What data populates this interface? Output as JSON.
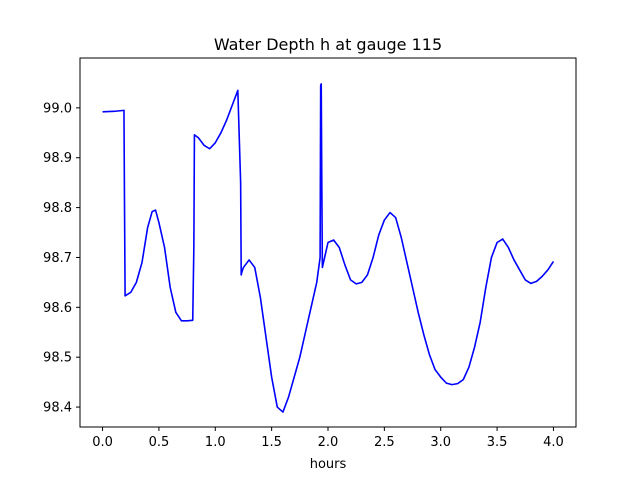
{
  "chart_data": {
    "type": "line",
    "title": "Water Depth h at gauge 115",
    "xlabel": "hours",
    "ylabel": "",
    "xlim": [
      -0.2,
      4.2
    ],
    "ylim": [
      98.36,
      99.1
    ],
    "xticks": [
      0.0,
      0.5,
      1.0,
      1.5,
      2.0,
      2.5,
      3.0,
      3.5,
      4.0
    ],
    "xtick_labels": [
      "0.0",
      "0.5",
      "1.0",
      "1.5",
      "2.0",
      "2.5",
      "3.0",
      "3.5",
      "4.0"
    ],
    "yticks": [
      98.4,
      98.5,
      98.6,
      98.7,
      98.8,
      98.9,
      99.0
    ],
    "ytick_labels": [
      "98.4",
      "98.5",
      "98.6",
      "98.7",
      "98.8",
      "98.9",
      "99.0"
    ],
    "grid": false,
    "series": [
      {
        "color": "#0000ff",
        "x": [
          0.0,
          0.1,
          0.19,
          0.195,
          0.2,
          0.25,
          0.3,
          0.35,
          0.4,
          0.44,
          0.47,
          0.5,
          0.55,
          0.6,
          0.65,
          0.7,
          0.75,
          0.8,
          0.81,
          0.815,
          0.82,
          0.85,
          0.9,
          0.95,
          1.0,
          1.05,
          1.1,
          1.15,
          1.2,
          1.225,
          1.23,
          1.235,
          1.25,
          1.3,
          1.35,
          1.4,
          1.45,
          1.5,
          1.55,
          1.6,
          1.65,
          1.7,
          1.75,
          1.8,
          1.85,
          1.9,
          1.93,
          1.935,
          1.94,
          1.945,
          1.95,
          1.98,
          2.0,
          2.05,
          2.1,
          2.15,
          2.2,
          2.25,
          2.3,
          2.35,
          2.4,
          2.45,
          2.5,
          2.55,
          2.6,
          2.65,
          2.7,
          2.75,
          2.8,
          2.85,
          2.9,
          2.95,
          3.0,
          3.05,
          3.1,
          3.15,
          3.2,
          3.25,
          3.3,
          3.35,
          3.4,
          3.45,
          3.5,
          3.55,
          3.6,
          3.65,
          3.7,
          3.75,
          3.8,
          3.85,
          3.9,
          3.95,
          4.0
        ],
        "y": [
          98.992,
          98.993,
          98.995,
          98.8,
          98.623,
          98.63,
          98.65,
          98.69,
          98.76,
          98.792,
          98.795,
          98.77,
          98.72,
          98.64,
          98.59,
          98.573,
          98.573,
          98.574,
          98.72,
          98.946,
          98.945,
          98.94,
          98.925,
          98.918,
          98.93,
          98.95,
          98.975,
          99.005,
          99.035,
          98.85,
          98.665,
          98.67,
          98.68,
          98.695,
          98.68,
          98.62,
          98.54,
          98.46,
          98.4,
          98.39,
          98.42,
          98.46,
          98.5,
          98.55,
          98.6,
          98.65,
          98.7,
          99.045,
          99.048,
          98.85,
          98.68,
          98.71,
          98.73,
          98.735,
          98.72,
          98.685,
          98.655,
          98.647,
          98.65,
          98.665,
          98.7,
          98.745,
          98.775,
          98.79,
          98.78,
          98.74,
          98.69,
          98.64,
          98.59,
          98.545,
          98.505,
          98.475,
          98.46,
          98.448,
          98.445,
          98.447,
          98.455,
          98.48,
          98.52,
          98.57,
          98.64,
          98.7,
          98.73,
          98.737,
          98.72,
          98.695,
          98.675,
          98.655,
          98.648,
          98.652,
          98.662,
          98.675,
          98.692
        ]
      }
    ]
  }
}
